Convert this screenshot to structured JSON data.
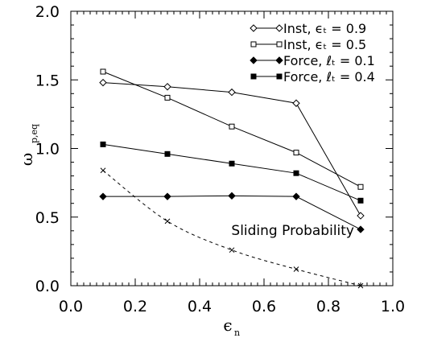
{
  "chart_data": {
    "type": "line",
    "title": "",
    "xlabel": "ϵ",
    "xlabel_subscript": "n",
    "ylabel": "ω",
    "ylabel_subscript": "p,eq",
    "xlim": [
      0.0,
      1.0
    ],
    "ylim": [
      0.0,
      2.0
    ],
    "xticks": [
      "0.0",
      "0.2",
      "0.4",
      "0.6",
      "0.8",
      "1.0"
    ],
    "yticks": [
      "0.0",
      "0.5",
      "1.0",
      "1.5",
      "2.0"
    ],
    "xtick_values": [
      0.0,
      0.2,
      0.4,
      0.6,
      0.8,
      1.0
    ],
    "ytick_values": [
      0.0,
      0.5,
      1.0,
      1.5,
      2.0
    ],
    "grid": false,
    "legend_position": "top-right",
    "x": [
      0.1,
      0.3,
      0.5,
      0.7,
      0.9
    ],
    "series": [
      {
        "name": "Inst, ϵₜ = 0.9",
        "marker": "open-diamond",
        "line": "solid",
        "values": [
          1.48,
          1.45,
          1.41,
          1.33,
          0.51
        ]
      },
      {
        "name": "Inst, ϵₜ = 0.5",
        "marker": "open-square",
        "line": "solid",
        "values": [
          1.56,
          1.37,
          1.16,
          0.97,
          0.72
        ]
      },
      {
        "name": "Force, ℓₜ = 0.1",
        "marker": "filled-diamond",
        "line": "solid",
        "values": [
          0.65,
          0.65,
          0.655,
          0.65,
          0.41
        ]
      },
      {
        "name": "Force, ℓₜ = 0.4",
        "marker": "filled-square",
        "line": "solid",
        "values": [
          1.03,
          0.96,
          0.89,
          0.82,
          0.62
        ]
      }
    ],
    "extra_series": [
      {
        "label": "",
        "marker": "cross",
        "line": "dashed",
        "x": [
          0.1,
          0.3,
          0.5,
          0.7,
          0.9
        ],
        "values": [
          0.84,
          0.47,
          0.26,
          0.12,
          0.0
        ]
      }
    ],
    "annotations": [
      {
        "text": "Sliding Probability",
        "x": 0.88,
        "y": 0.37
      }
    ]
  }
}
